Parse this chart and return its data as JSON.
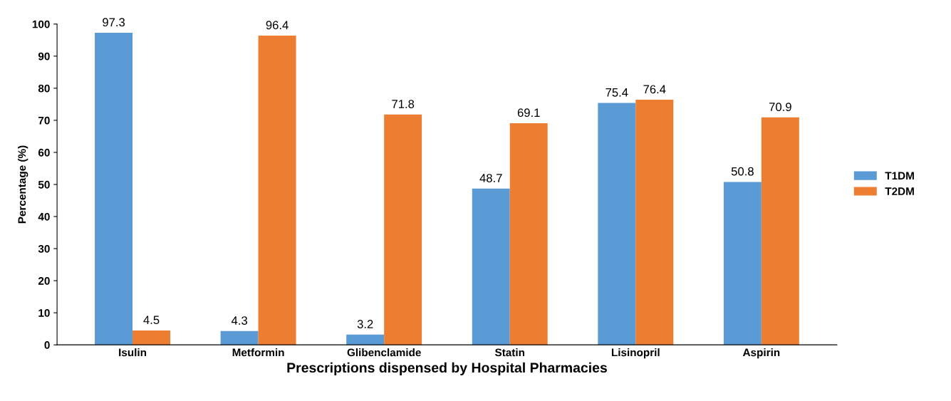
{
  "chart_data": {
    "type": "bar",
    "xlabel": "Prescriptions dispensed by Hospital Pharmacies",
    "ylabel": "Percentage (%)",
    "categories": [
      "Isulin",
      "Metformin",
      "Glibenclamide",
      "Statin",
      "Lisinopril",
      "Aspirin"
    ],
    "series": [
      {
        "name": "T1DM",
        "color": "#5b9bd5",
        "values": [
          97.3,
          4.3,
          3.2,
          48.7,
          75.4,
          50.8
        ]
      },
      {
        "name": "T2DM",
        "color": "#ed7d31",
        "values": [
          4.5,
          96.4,
          71.8,
          69.1,
          76.4,
          70.9
        ]
      }
    ],
    "ylim": [
      0,
      100
    ],
    "yticks": [
      0,
      10,
      20,
      30,
      40,
      50,
      60,
      70,
      80,
      90,
      100
    ],
    "data_labels": true,
    "grid": false,
    "legend": "right"
  }
}
